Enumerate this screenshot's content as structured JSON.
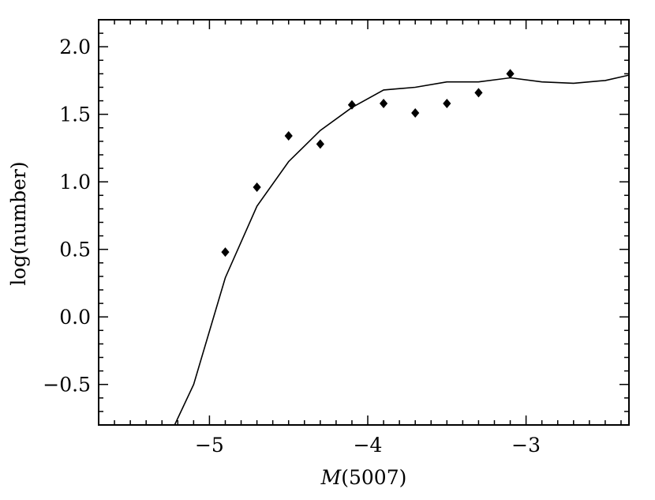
{
  "chart_data": {
    "type": "line+scatter",
    "xlabel_italic": "M",
    "xlabel_rest": "(5007)",
    "ylabel": "log(number)",
    "xlim": [
      -5.7,
      -2.35
    ],
    "ylim": [
      -0.8,
      2.2
    ],
    "x_ticks": [
      {
        "value": -5,
        "label": "−5"
      },
      {
        "value": -4,
        "label": "−4"
      },
      {
        "value": -3,
        "label": "−3"
      }
    ],
    "y_ticks": [
      {
        "value": -0.5,
        "label": "−0.5"
      },
      {
        "value": 0.0,
        "label": "0.0"
      },
      {
        "value": 0.5,
        "label": "0.5"
      },
      {
        "value": 1.0,
        "label": "1.0"
      },
      {
        "value": 1.5,
        "label": "1.5"
      },
      {
        "value": 2.0,
        "label": "2.0"
      }
    ],
    "x_minor_step": 0.1,
    "y_minor_step": 0.1,
    "series": [
      {
        "kind": "line",
        "color": "#000000",
        "x": [
          -5.22,
          -5.1,
          -4.9,
          -4.7,
          -4.5,
          -4.3,
          -4.1,
          -3.9,
          -3.7,
          -3.5,
          -3.3,
          -3.1,
          -2.9,
          -2.7,
          -2.5,
          -2.35
        ],
        "y": [
          -0.8,
          -0.5,
          0.29,
          0.82,
          1.15,
          1.38,
          1.55,
          1.68,
          1.7,
          1.74,
          1.74,
          1.77,
          1.74,
          1.73,
          1.75,
          1.79
        ]
      },
      {
        "kind": "scatter",
        "marker": "diamond",
        "color": "#000000",
        "x": [
          -4.9,
          -4.7,
          -4.5,
          -4.3,
          -4.1,
          -3.9,
          -3.7,
          -3.5,
          -3.3,
          -3.1
        ],
        "y": [
          0.48,
          0.96,
          1.34,
          1.28,
          1.57,
          1.58,
          1.51,
          1.58,
          1.66,
          1.8
        ]
      }
    ]
  }
}
